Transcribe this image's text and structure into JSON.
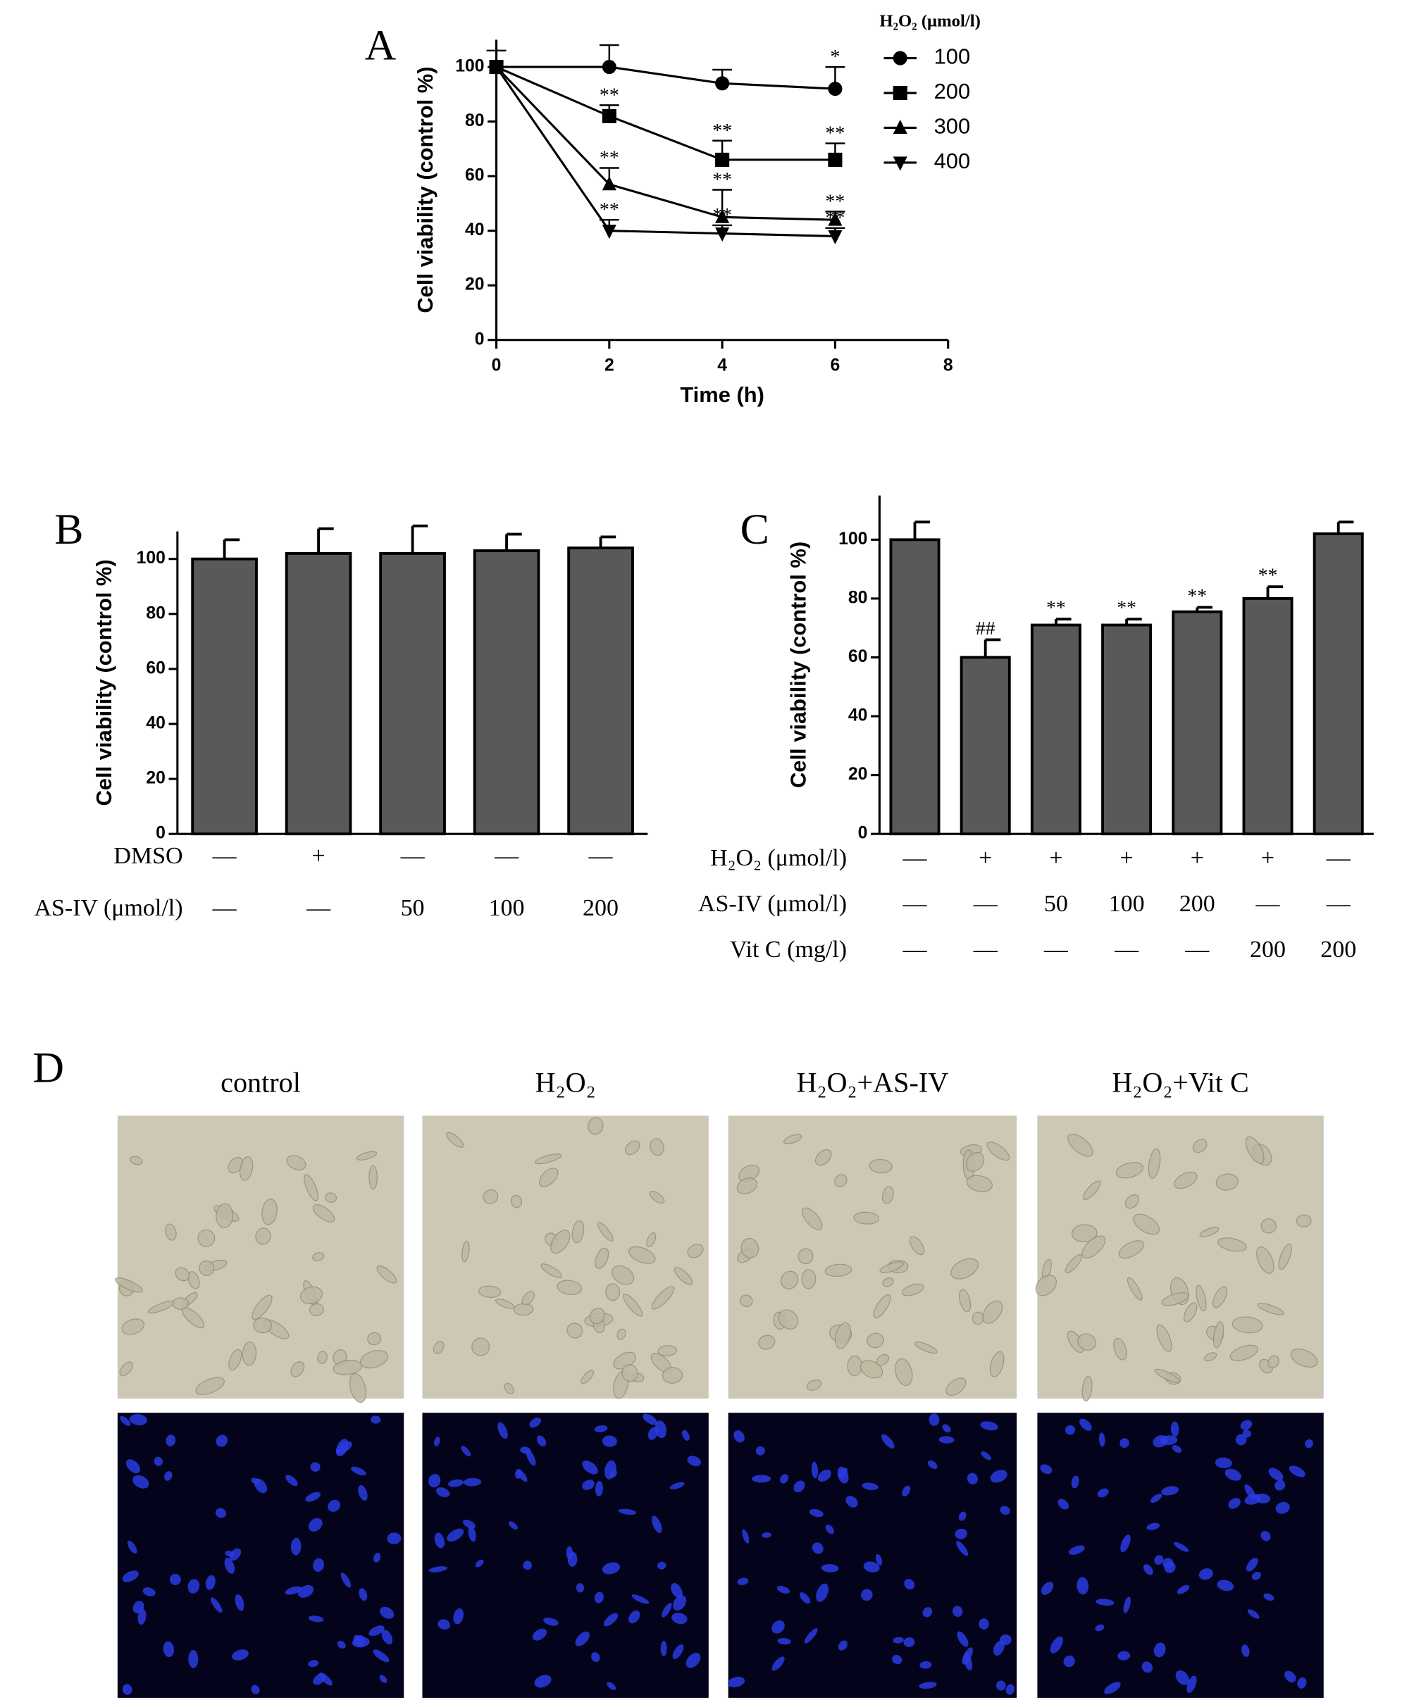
{
  "chart_data": [
    {
      "type": "line",
      "panel": "A",
      "x_label": "Time (h)",
      "y_label": "Cell viability (control %)",
      "x": [
        0,
        2,
        4,
        6
      ],
      "xlim": [
        0,
        8
      ],
      "xticks": [
        0,
        2,
        4,
        6,
        8
      ],
      "ylim": [
        0,
        110
      ],
      "yticks": [
        0,
        20,
        40,
        60,
        80,
        100
      ],
      "legend_title": "H₂O₂ (μmol/l)",
      "legend": "right",
      "series": [
        {
          "name": "100",
          "color": "#000000",
          "marker": "circle",
          "values": [
            100,
            100,
            94,
            92
          ],
          "errors": [
            6,
            8,
            5,
            8
          ],
          "significance": [
            null,
            null,
            null,
            "*"
          ]
        },
        {
          "name": "200",
          "color": "#000000",
          "marker": "square",
          "values": [
            100,
            82,
            66,
            66
          ],
          "errors": [
            0,
            4,
            7,
            6
          ],
          "significance": [
            null,
            "**",
            "**",
            "**"
          ]
        },
        {
          "name": "300",
          "color": "#000000",
          "marker": "triangle-up",
          "values": [
            100,
            57,
            45,
            44
          ],
          "errors": [
            0,
            6,
            10,
            3
          ],
          "significance": [
            null,
            "**",
            "**",
            "**"
          ]
        },
        {
          "name": "400",
          "color": "#000000",
          "marker": "triangle-down",
          "values": [
            100,
            40,
            39,
            38
          ],
          "errors": [
            0,
            4,
            3,
            3
          ],
          "significance": [
            null,
            "**",
            "**",
            "**"
          ]
        }
      ]
    },
    {
      "type": "bar",
      "panel": "B",
      "y_label": "Cell viability (control %)",
      "values": [
        100,
        102,
        102,
        103,
        104
      ],
      "errors": [
        7,
        9,
        10,
        6,
        4
      ],
      "color": "#595959",
      "ylim": [
        0,
        110
      ],
      "yticks": [
        0,
        20,
        40,
        60,
        80,
        100
      ],
      "conditions": [
        {
          "label": "DMSO",
          "values": [
            "—",
            "+",
            "—",
            "—",
            "—"
          ]
        },
        {
          "label": "AS-IV (μmol/l)",
          "values": [
            "—",
            "—",
            "50",
            "100",
            "200"
          ]
        }
      ]
    },
    {
      "type": "bar",
      "panel": "C",
      "y_label": "Cell viability (control %)",
      "values": [
        100,
        60,
        71,
        71,
        75.5,
        80,
        102
      ],
      "errors": [
        6,
        6,
        2,
        2,
        1.5,
        4,
        4
      ],
      "color": "#595959",
      "significance": [
        null,
        "##",
        "**",
        "**",
        "**",
        "**",
        null
      ],
      "ylim": [
        0,
        115
      ],
      "yticks": [
        0,
        20,
        40,
        60,
        80,
        100
      ],
      "conditions": [
        {
          "label": "H₂O₂ (μmol/l)",
          "values": [
            "—",
            "+",
            "+",
            "+",
            "+",
            "+",
            "—"
          ]
        },
        {
          "label": "AS-IV (μmol/l)",
          "values": [
            "—",
            "—",
            "50",
            "100",
            "200",
            "—",
            "—"
          ]
        },
        {
          "label": "Vit C (mg/l)",
          "values": [
            "—",
            "—",
            "—",
            "—",
            "—",
            "200",
            "200"
          ]
        }
      ]
    }
  ],
  "panel_d": {
    "label": "D",
    "columns": [
      "control",
      "H₂O₂",
      "H₂O₂+AS-IV",
      "H₂O₂+Vit C"
    ]
  }
}
